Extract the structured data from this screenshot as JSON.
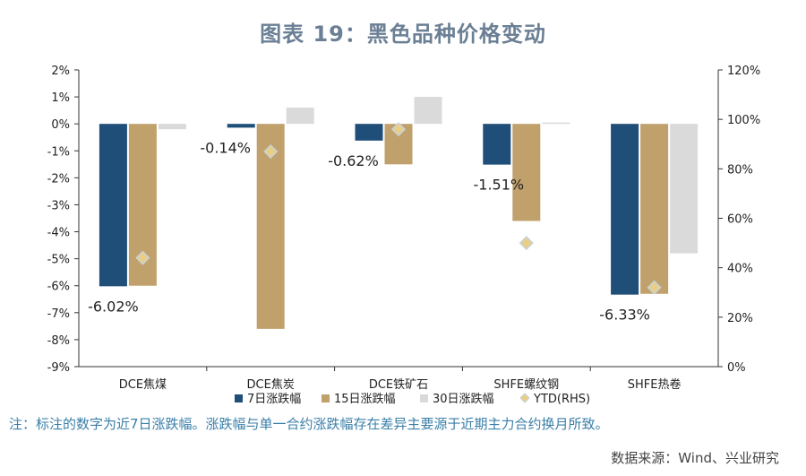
{
  "title": "图表 19：黑色品种价格变动",
  "note": "注：标注的数字为近7日涨跌幅。涨跌幅与单一合约涨跌幅存在差异主要源于近期主力合约换月所致。",
  "source": "数据来源：Wind、兴业研究",
  "colors": {
    "s7": "#1f4e79",
    "s15": "#c1a16b",
    "s30": "#dadada",
    "ytd": "#e8cf87",
    "ytd_border": "#c7d1dc",
    "axis": "#333333",
    "title": "#6b7f95"
  },
  "chart_data": {
    "type": "bar",
    "categories": [
      "DCE焦煤",
      "DCE焦炭",
      "DCE铁矿石",
      "SHFE螺纹钢",
      "SHFE热卷"
    ],
    "series": [
      {
        "name": "7日涨跌幅",
        "axis": "left",
        "values": [
          -6.02,
          -0.14,
          -0.62,
          -1.51,
          -6.33
        ]
      },
      {
        "name": "15日涨跌幅",
        "axis": "left",
        "values": [
          -6.0,
          -7.6,
          -1.5,
          -3.6,
          -6.3
        ]
      },
      {
        "name": "30日涨跌幅",
        "axis": "left",
        "values": [
          -0.2,
          0.6,
          1.0,
          0.05,
          -4.8
        ]
      },
      {
        "name": "YTD(RHS)",
        "axis": "right",
        "type": "scatter",
        "values": [
          44,
          87,
          96,
          50,
          32
        ]
      }
    ],
    "data_labels": [
      "-6.02%",
      "-0.14%",
      "-0.62%",
      "-1.51%",
      "-6.33%"
    ],
    "left_axis": {
      "ylim": [
        -9,
        2
      ],
      "ticks": [
        2,
        1,
        0,
        -1,
        -2,
        -3,
        -4,
        -5,
        -6,
        -7,
        -8,
        -9
      ],
      "tick_labels": [
        "2%",
        "1%",
        "0%",
        "-1%",
        "-2%",
        "-3%",
        "-4%",
        "-5%",
        "-6%",
        "-7%",
        "-8%",
        "-9%"
      ]
    },
    "right_axis": {
      "ylim": [
        0,
        120
      ],
      "ticks": [
        120,
        100,
        80,
        60,
        40,
        20,
        0
      ],
      "tick_labels": [
        "120%",
        "100%",
        "80%",
        "60%",
        "40%",
        "20%",
        "0%"
      ]
    },
    "legend": {
      "position": "bottom",
      "items": [
        "7日涨跌幅",
        "15日涨跌幅",
        "30日涨跌幅",
        "YTD(RHS)"
      ]
    }
  }
}
